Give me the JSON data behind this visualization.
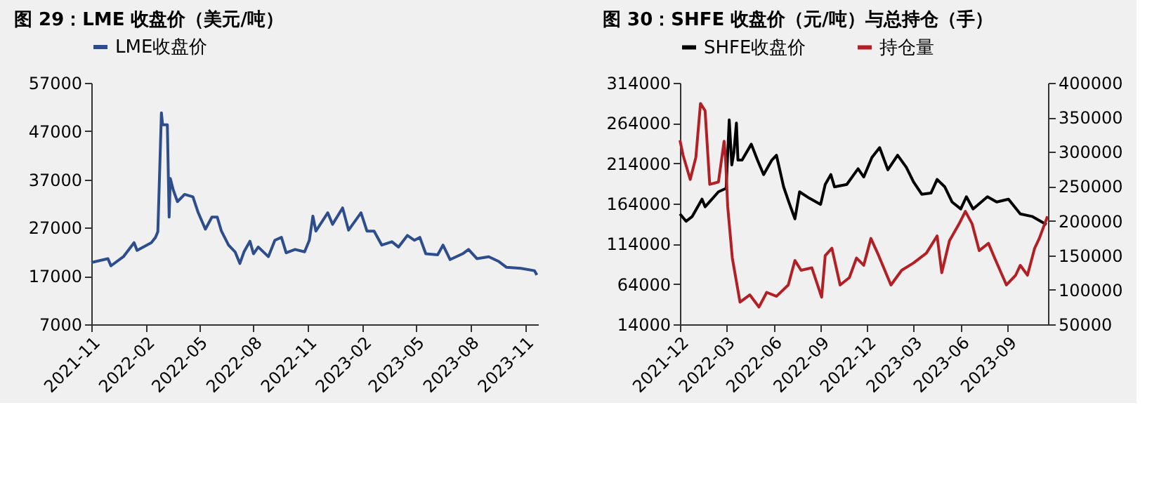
{
  "chart_data": [
    {
      "type": "line",
      "title": "图 29：LME 收盘价（美元/吨）",
      "legend": "top",
      "grid": false,
      "marker": "none",
      "line_style": "solid",
      "xlim": [
        "2021-11-01",
        "2023-11-23"
      ],
      "xticks": [
        "2021-11",
        "2022-02",
        "2022-05",
        "2022-08",
        "2022-11",
        "2023-02",
        "2023-05",
        "2023-08",
        "2023-11"
      ],
      "ylim": [
        7000,
        57000
      ],
      "yticks": [
        7000,
        17000,
        27000,
        37000,
        47000,
        57000
      ],
      "series": [
        {
          "name": "LME收盘价",
          "color": "#2e4d8c",
          "x": [
            "2021-11-01",
            "2021-11-29",
            "2021-12-04",
            "2021-12-25",
            "2022-01-12",
            "2022-01-17",
            "2022-02-10",
            "2022-02-17",
            "2022-02-21",
            "2022-02-27",
            "2022-03-01",
            "2022-03-09",
            "2022-03-12",
            "2022-03-14",
            "2022-03-19",
            "2022-03-26",
            "2022-04-07",
            "2022-04-21",
            "2022-04-30",
            "2022-05-12",
            "2022-05-23",
            "2022-06-01",
            "2022-06-08",
            "2022-06-20",
            "2022-07-01",
            "2022-07-09",
            "2022-07-16",
            "2022-07-26",
            "2022-08-01",
            "2022-08-09",
            "2022-08-26",
            "2022-09-06",
            "2022-09-17",
            "2022-09-25",
            "2022-10-10",
            "2022-10-26",
            "2022-11-03",
            "2022-11-09",
            "2022-11-14",
            "2022-12-04",
            "2022-12-12",
            "2022-12-29",
            "2023-01-08",
            "2023-01-29",
            "2023-02-08",
            "2023-02-20",
            "2023-03-05",
            "2023-03-22",
            "2023-04-02",
            "2023-04-17",
            "2023-04-29",
            "2023-05-08",
            "2023-05-18",
            "2023-06-07",
            "2023-06-16",
            "2023-06-28",
            "2023-07-19",
            "2023-07-29",
            "2023-08-12",
            "2023-09-01",
            "2023-09-18",
            "2023-10-01",
            "2023-10-25",
            "2023-11-17",
            "2023-11-21"
          ],
          "values": [
            19800,
            20600,
            19100,
            21000,
            23900,
            22300,
            23900,
            25000,
            26200,
            50800,
            48300,
            48300,
            29200,
            37200,
            34800,
            32400,
            33900,
            33400,
            30100,
            26700,
            29200,
            29200,
            26300,
            23400,
            22000,
            19600,
            22000,
            24200,
            21600,
            23000,
            21000,
            24400,
            25000,
            21800,
            22500,
            22000,
            24400,
            29400,
            26300,
            30100,
            27700,
            31100,
            26500,
            30100,
            26300,
            26300,
            23400,
            24100,
            23000,
            25400,
            24400,
            25000,
            21600,
            21400,
            23400,
            20400,
            21600,
            22500,
            20600,
            21000,
            20000,
            18800,
            18600,
            18100,
            17200
          ]
        }
      ]
    },
    {
      "type": "line",
      "title": "图 30：SHFE 收盘价（元/吨）与总持仓（手）",
      "legend": "top",
      "grid": false,
      "marker": "none",
      "line_style": "solid",
      "xlim": [
        "2021-12-01",
        "2023-11-18"
      ],
      "xticks": [
        "2021-12",
        "2022-03",
        "2022-06",
        "2022-09",
        "2022-12",
        "2023-03",
        "2023-06",
        "2023-09"
      ],
      "ylim": [
        14000,
        314000
      ],
      "yticks": [
        14000,
        64000,
        114000,
        164000,
        214000,
        264000,
        314000
      ],
      "y2lim": [
        50000,
        400000
      ],
      "y2ticks": [
        50000,
        100000,
        150000,
        200000,
        250000,
        300000,
        350000,
        400000
      ],
      "series": [
        {
          "name": "SHFE收盘价",
          "color": "#000000",
          "axis": "y",
          "x": [
            "2021-12-01",
            "2021-12-13",
            "2021-12-25",
            "2022-01-13",
            "2022-01-19",
            "2022-02-14",
            "2022-03-01",
            "2022-03-07",
            "2022-03-12",
            "2022-03-16",
            "2022-03-21",
            "2022-03-24",
            "2022-04-01",
            "2022-04-19",
            "2022-05-01",
            "2022-05-13",
            "2022-05-29",
            "2022-06-07",
            "2022-06-21",
            "2022-07-01",
            "2022-07-13",
            "2022-07-22",
            "2022-08-10",
            "2022-09-01",
            "2022-09-10",
            "2022-09-21",
            "2022-09-28",
            "2022-10-22",
            "2022-11-13",
            "2022-11-24",
            "2022-12-10",
            "2022-12-25",
            "2023-01-10",
            "2023-01-29",
            "2023-02-15",
            "2023-03-01",
            "2023-03-17",
            "2023-04-04",
            "2023-04-16",
            "2023-05-01",
            "2023-05-15",
            "2023-06-01",
            "2023-06-12",
            "2023-06-25",
            "2023-07-23",
            "2023-08-10",
            "2023-09-02",
            "2023-09-25",
            "2023-10-18",
            "2023-11-15"
          ],
          "values": [
            151200,
            142000,
            148000,
            169500,
            160000,
            178600,
            183000,
            268000,
            212000,
            227000,
            264000,
            218000,
            218000,
            237800,
            218000,
            200000,
            218000,
            224000,
            184700,
            166000,
            145000,
            178600,
            170700,
            163000,
            187800,
            200000,
            184700,
            187800,
            207300,
            197000,
            221300,
            233500,
            206000,
            224000,
            209000,
            191000,
            175600,
            177000,
            194000,
            184700,
            166000,
            157300,
            172500,
            157300,
            172500,
            166000,
            169500,
            151200,
            148000,
            137800
          ]
        },
        {
          "name": "持仓量",
          "color": "#b22025",
          "axis": "y2",
          "x": [
            "2021-12-01",
            "2021-12-07",
            "2021-12-21",
            "2022-01-01",
            "2022-01-10",
            "2022-01-19",
            "2022-01-28",
            "2022-02-14",
            "2022-02-25",
            "2022-02-28",
            "2022-03-04",
            "2022-03-13",
            "2022-03-28",
            "2022-04-16",
            "2022-05-04",
            "2022-05-19",
            "2022-06-07",
            "2022-06-30",
            "2022-07-13",
            "2022-07-25",
            "2022-08-15",
            "2022-09-03",
            "2022-09-10",
            "2022-09-23",
            "2022-10-09",
            "2022-10-27",
            "2022-11-10",
            "2022-11-24",
            "2022-12-08",
            "2022-12-21",
            "2023-01-16",
            "2023-02-06",
            "2023-03-01",
            "2023-03-26",
            "2023-04-16",
            "2023-04-25",
            "2023-05-10",
            "2023-05-29",
            "2023-06-10",
            "2023-06-23",
            "2023-07-07",
            "2023-07-25",
            "2023-08-06",
            "2023-08-29",
            "2023-09-16",
            "2023-09-25",
            "2023-10-09",
            "2023-10-23",
            "2023-11-01",
            "2023-11-17"
          ],
          "values": [
            316800,
            295500,
            259900,
            291900,
            370100,
            359500,
            252800,
            256300,
            315400,
            288300,
            220800,
            146100,
            82100,
            92700,
            75000,
            96300,
            90600,
            107000,
            142500,
            128300,
            131900,
            89200,
            149600,
            160300,
            107000,
            117700,
            146100,
            135500,
            174500,
            153200,
            107000,
            128300,
            138900,
            153200,
            178100,
            124800,
            171000,
            195900,
            213700,
            195900,
            156800,
            167400,
            146100,
            107000,
            121200,
            135500,
            121200,
            160300,
            174500,
            206500
          ]
        }
      ]
    }
  ]
}
